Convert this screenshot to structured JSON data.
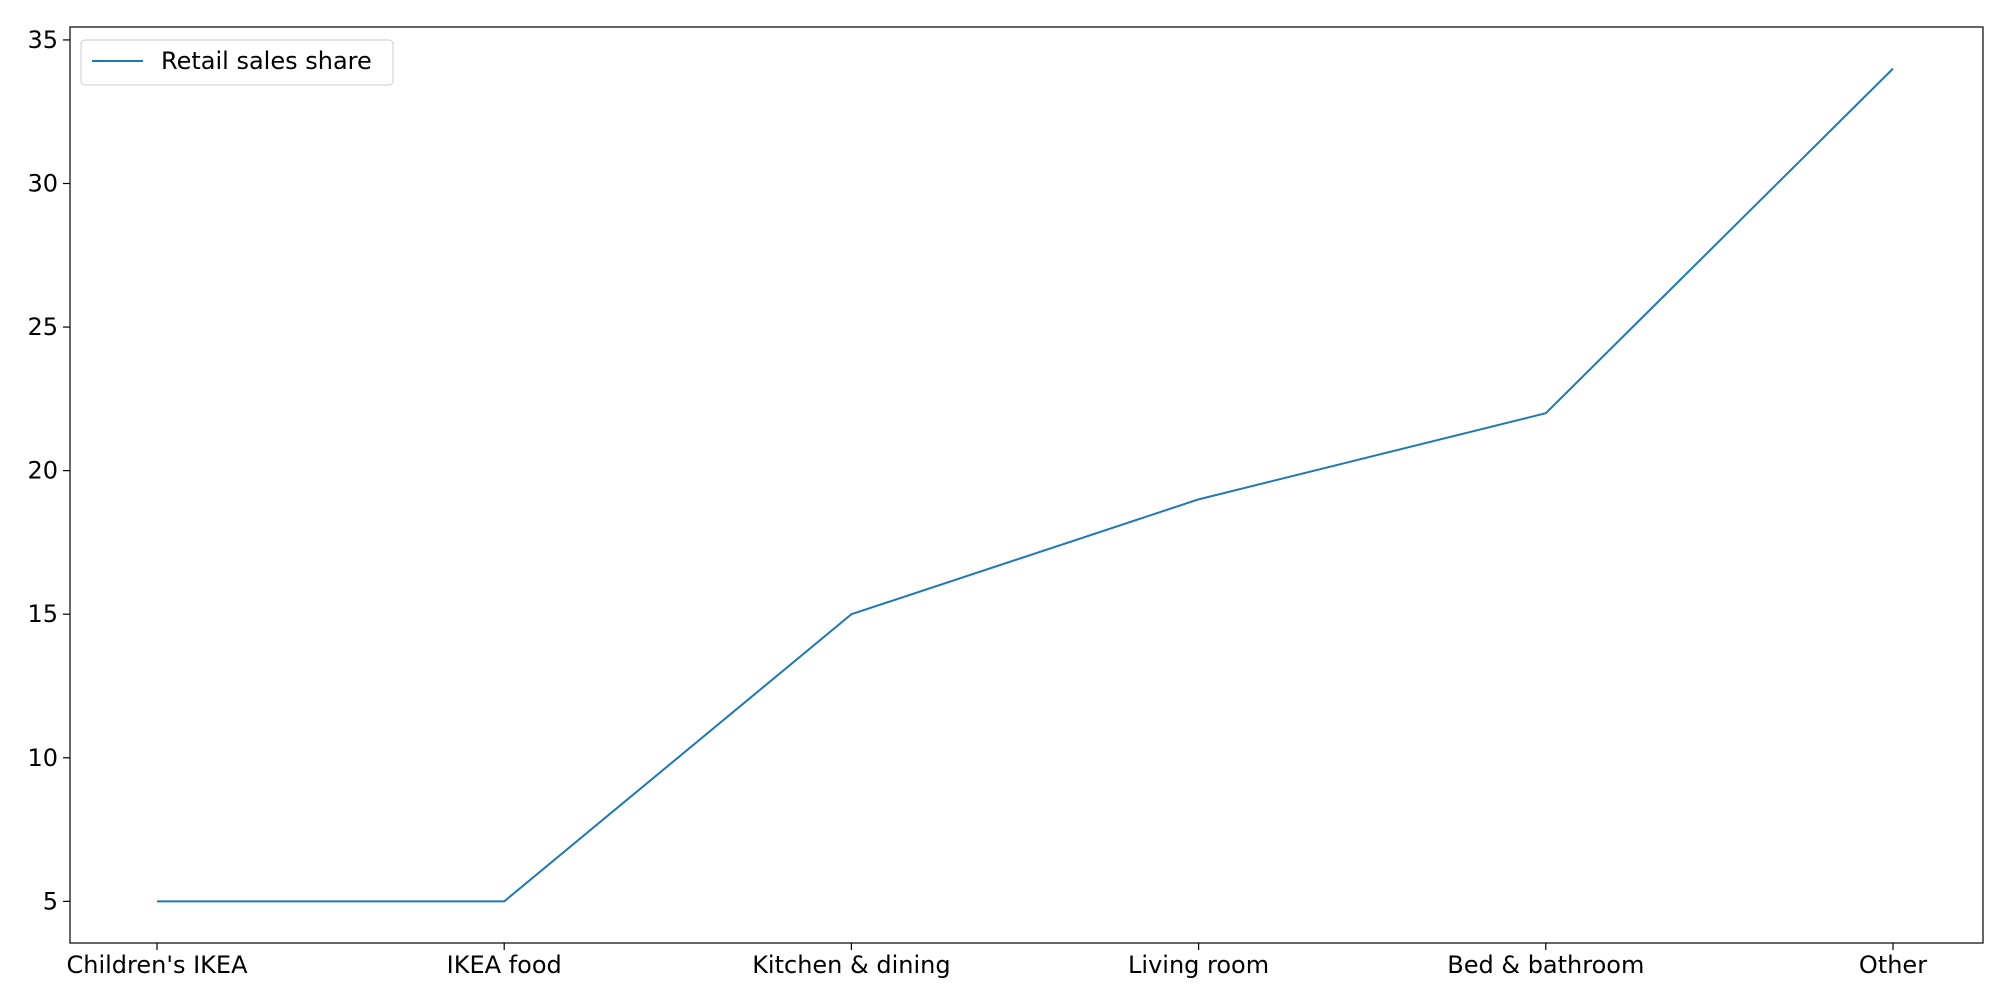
{
  "chart_data": {
    "type": "line",
    "title": "",
    "xlabel": "",
    "ylabel": "",
    "categories": [
      "Children's IKEA",
      "IKEA food",
      "Kitchen & dining",
      "Living room",
      "Bed & bathroom",
      "Other"
    ],
    "series": [
      {
        "name": "Retail sales share",
        "values": [
          5,
          5,
          15,
          19,
          22,
          34
        ],
        "color": "#1f77b4"
      }
    ],
    "yticks": [
      5,
      10,
      15,
      20,
      25,
      30,
      35
    ],
    "ylim": [
      3.55,
      35.45
    ],
    "grid": false,
    "legend_position": "top-left"
  }
}
